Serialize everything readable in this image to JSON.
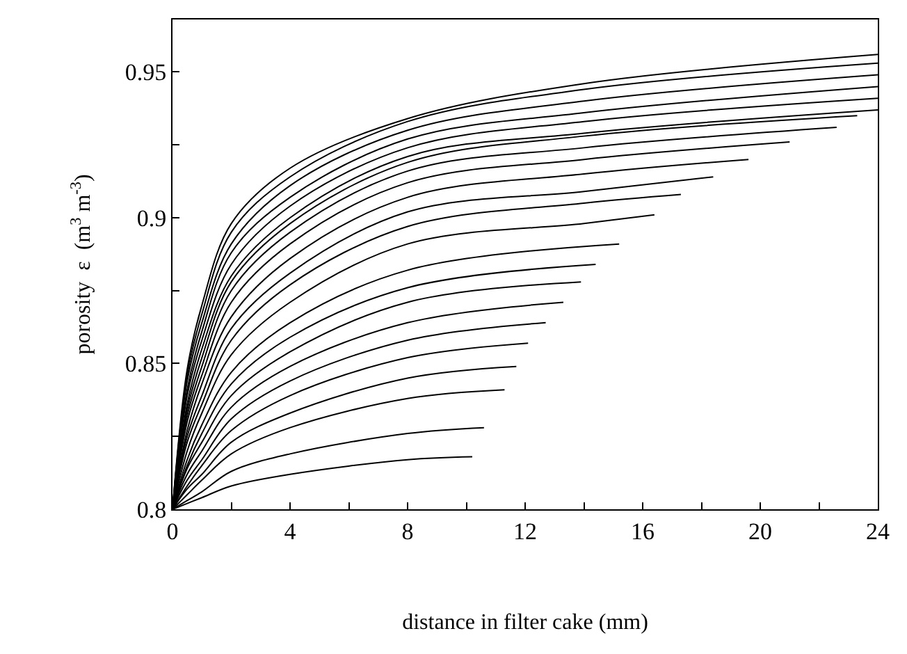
{
  "chart_data": {
    "type": "line",
    "xlabel": "distance in filter cake (mm)",
    "ylabel": "porosity  ε  (m$^{3}$ m$^{-3}$)",
    "xlim": [
      0,
      24
    ],
    "ylim": [
      0.8,
      0.968
    ],
    "xticks": [
      0,
      {
        "value": 2,
        "label": null
      },
      4,
      {
        "value": 6,
        "label": null
      },
      8,
      {
        "value": 10,
        "label": null
      },
      12,
      {
        "value": 14,
        "label": null
      },
      16,
      {
        "value": 18,
        "label": null
      },
      20,
      {
        "value": 22,
        "label": null
      },
      24
    ],
    "yticks": [
      0.8,
      {
        "value": 0.825,
        "label": null
      },
      0.85,
      {
        "value": 0.875,
        "label": null
      },
      0.9,
      {
        "value": 0.925,
        "label": null
      },
      0.95
    ],
    "marker": "none",
    "line_style": "solid",
    "series": [
      {
        "color": "#000000",
        "x": [
          0,
          0.5,
          1,
          2,
          4,
          8,
          10.2
        ],
        "values": [
          0.8,
          0.802,
          0.804,
          0.808,
          0.812,
          0.817,
          0.818
        ]
      },
      {
        "color": "#000000",
        "x": [
          0,
          0.5,
          1,
          2,
          4,
          8,
          10.6
        ],
        "values": [
          0.8,
          0.803,
          0.806,
          0.813,
          0.819,
          0.826,
          0.828
        ]
      },
      {
        "color": "#000000",
        "x": [
          0,
          0.5,
          1,
          2,
          4,
          8,
          11.3
        ],
        "values": [
          0.8,
          0.805,
          0.81,
          0.819,
          0.828,
          0.838,
          0.841
        ]
      },
      {
        "color": "#000000",
        "x": [
          0,
          0.5,
          1,
          2,
          4,
          8,
          11.7
        ],
        "values": [
          0.8,
          0.807,
          0.812,
          0.823,
          0.833,
          0.845,
          0.849
        ]
      },
      {
        "color": "#000000",
        "x": [
          0,
          0.5,
          1,
          2,
          4,
          8,
          12.1
        ],
        "values": [
          0.8,
          0.808,
          0.815,
          0.827,
          0.839,
          0.852,
          0.857
        ]
      },
      {
        "color": "#000000",
        "x": [
          0,
          0.5,
          1,
          2,
          4,
          8,
          12.7
        ],
        "values": [
          0.8,
          0.81,
          0.817,
          0.831,
          0.844,
          0.858,
          0.864
        ]
      },
      {
        "color": "#000000",
        "x": [
          0,
          0.5,
          1,
          2,
          4,
          8,
          13.3
        ],
        "values": [
          0.8,
          0.812,
          0.82,
          0.835,
          0.849,
          0.864,
          0.871
        ]
      },
      {
        "color": "#000000",
        "x": [
          0,
          0.5,
          1,
          2,
          4,
          8,
          13.9
        ],
        "values": [
          0.8,
          0.814,
          0.823,
          0.839,
          0.854,
          0.871,
          0.878
        ]
      },
      {
        "color": "#000000",
        "x": [
          0,
          0.5,
          1,
          2,
          4,
          8,
          14.4
        ],
        "values": [
          0.8,
          0.815,
          0.826,
          0.843,
          0.859,
          0.876,
          0.884
        ]
      },
      {
        "color": "#000000",
        "x": [
          0,
          0.5,
          1,
          2,
          4,
          8,
          15.2
        ],
        "values": [
          0.8,
          0.817,
          0.829,
          0.847,
          0.864,
          0.882,
          0.891
        ]
      },
      {
        "color": "#000000",
        "x": [
          0,
          0.5,
          1,
          2,
          4,
          8,
          14,
          16.4
        ],
        "values": [
          0.8,
          0.82,
          0.833,
          0.853,
          0.871,
          0.891,
          0.898,
          0.901
        ]
      },
      {
        "color": "#000000",
        "x": [
          0,
          0.5,
          1,
          2,
          4,
          8,
          14,
          17.3
        ],
        "values": [
          0.8,
          0.823,
          0.836,
          0.858,
          0.877,
          0.897,
          0.905,
          0.908
        ]
      },
      {
        "color": "#000000",
        "x": [
          0,
          0.5,
          1,
          2,
          4,
          8,
          14,
          18.4
        ],
        "values": [
          0.8,
          0.825,
          0.839,
          0.862,
          0.881,
          0.902,
          0.909,
          0.914
        ]
      },
      {
        "color": "#000000",
        "x": [
          0,
          0.5,
          1,
          2,
          4,
          8,
          14,
          19.6
        ],
        "values": [
          0.8,
          0.827,
          0.843,
          0.866,
          0.886,
          0.907,
          0.915,
          0.92
        ]
      },
      {
        "color": "#000000",
        "x": [
          0,
          0.5,
          1,
          2,
          4,
          8,
          14,
          21
        ],
        "values": [
          0.8,
          0.83,
          0.846,
          0.871,
          0.891,
          0.912,
          0.92,
          0.926
        ]
      },
      {
        "color": "#000000",
        "x": [
          0,
          0.5,
          1,
          2,
          4,
          8,
          14,
          22.6
        ],
        "values": [
          0.8,
          0.832,
          0.849,
          0.875,
          0.895,
          0.916,
          0.924,
          0.931
        ]
      },
      {
        "color": "#000000",
        "x": [
          0,
          0.5,
          1,
          2,
          4,
          8,
          14,
          23.3
        ],
        "values": [
          0.8,
          0.834,
          0.852,
          0.878,
          0.898,
          0.919,
          0.928,
          0.935
        ]
      },
      {
        "color": "#000000",
        "x": [
          0,
          0.5,
          1,
          2,
          4,
          8,
          14,
          24
        ],
        "values": [
          0.8,
          0.836,
          0.855,
          0.88,
          0.9,
          0.921,
          0.929,
          0.937
        ]
      },
      {
        "color": "#000000",
        "x": [
          0,
          0.5,
          1,
          2,
          4,
          8,
          14,
          24
        ],
        "values": [
          0.8,
          0.839,
          0.858,
          0.884,
          0.904,
          0.924,
          0.933,
          0.941
        ]
      },
      {
        "color": "#000000",
        "x": [
          0,
          0.5,
          1,
          2,
          4,
          8,
          14,
          24
        ],
        "values": [
          0.8,
          0.841,
          0.861,
          0.888,
          0.907,
          0.927,
          0.936,
          0.945
        ]
      },
      {
        "color": "#000000",
        "x": [
          0,
          0.5,
          1,
          2,
          4,
          8,
          14,
          24
        ],
        "values": [
          0.8,
          0.844,
          0.864,
          0.891,
          0.911,
          0.93,
          0.94,
          0.949
        ]
      },
      {
        "color": "#000000",
        "x": [
          0,
          0.5,
          1,
          2,
          4,
          8,
          14,
          24
        ],
        "values": [
          0.8,
          0.846,
          0.867,
          0.895,
          0.914,
          0.933,
          0.944,
          0.953
        ]
      },
      {
        "color": "#000000",
        "x": [
          0,
          0.5,
          1,
          2,
          4,
          8,
          14,
          24
        ],
        "values": [
          0.8,
          0.848,
          0.87,
          0.898,
          0.917,
          0.934,
          0.946,
          0.956
        ]
      }
    ]
  }
}
